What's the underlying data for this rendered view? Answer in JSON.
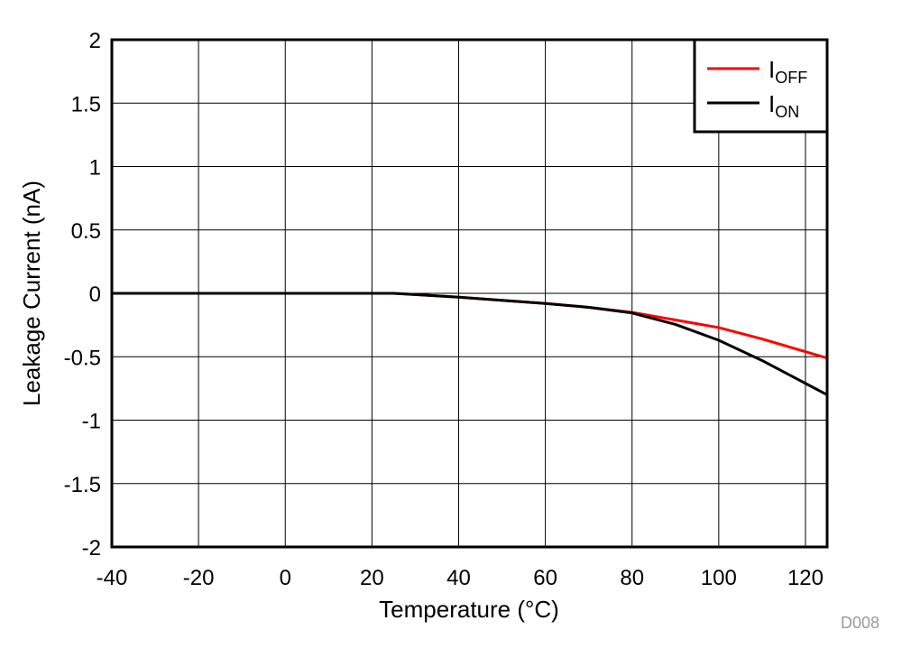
{
  "chart_data": {
    "type": "line",
    "title": "",
    "xlabel": "Temperature (°C)",
    "ylabel": "Leakage Current (nA)",
    "xlim": [
      -40,
      125
    ],
    "ylim": [
      -2,
      2
    ],
    "xticks": [
      -40,
      -20,
      0,
      20,
      40,
      60,
      80,
      100,
      120
    ],
    "yticks": [
      2,
      1.5,
      1,
      0.5,
      0,
      -0.5,
      -1,
      -1.5,
      -2
    ],
    "grid": true,
    "legend_placement": "top-right",
    "x": [
      -40,
      -20,
      0,
      20,
      25,
      30,
      40,
      50,
      60,
      70,
      80,
      90,
      100,
      110,
      120,
      125
    ],
    "series": [
      {
        "name": "IOFF",
        "label_main": "I",
        "label_sub": "OFF",
        "color": "#ff0000",
        "values": [
          0,
          0,
          0,
          0,
          0,
          -0.01,
          -0.03,
          -0.055,
          -0.08,
          -0.11,
          -0.15,
          -0.21,
          -0.27,
          -0.36,
          -0.46,
          -0.51
        ]
      },
      {
        "name": "ION",
        "label_main": "I",
        "label_sub": "ON",
        "color": "#000000",
        "values": [
          0,
          0,
          0,
          0,
          0,
          -0.01,
          -0.03,
          -0.055,
          -0.08,
          -0.11,
          -0.155,
          -0.245,
          -0.37,
          -0.53,
          -0.71,
          -0.8
        ]
      }
    ],
    "figure_id": "D008"
  }
}
